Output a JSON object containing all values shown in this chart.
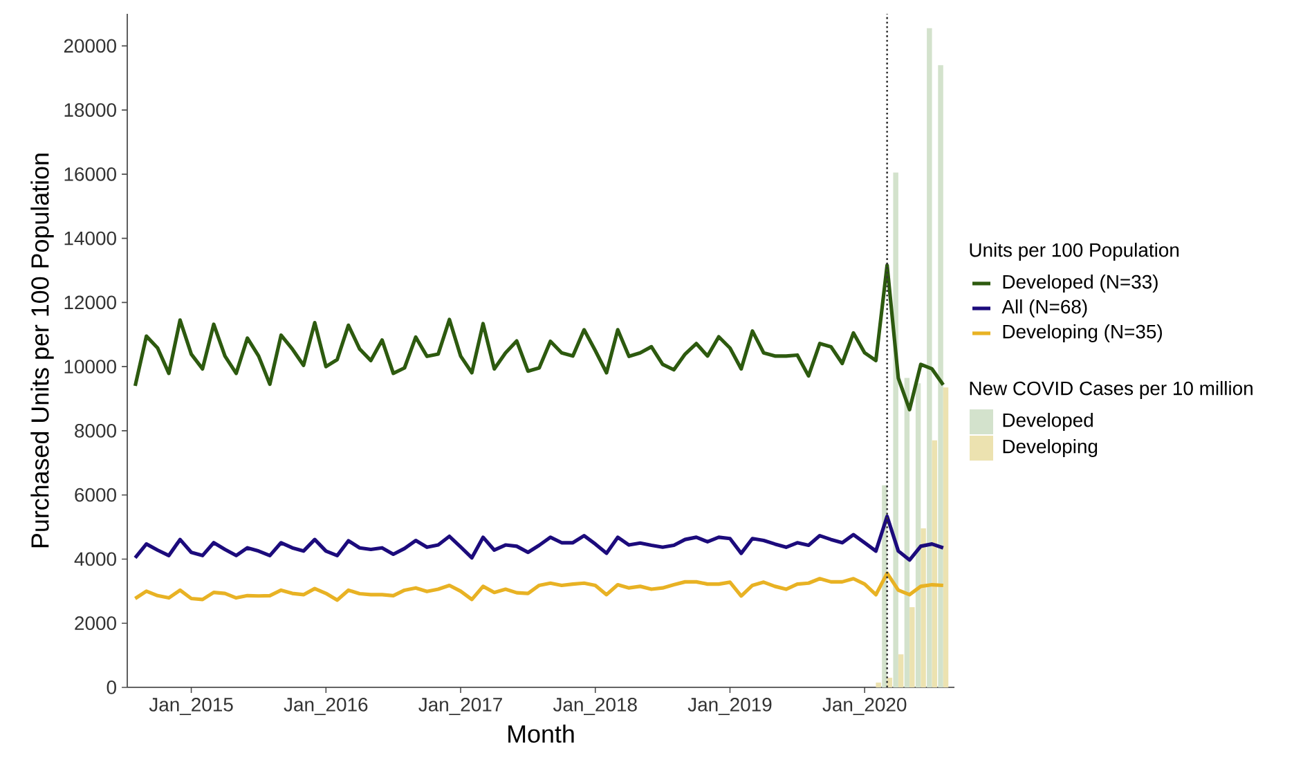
{
  "chart_data": {
    "type": "line",
    "xlabel": "Month",
    "ylabel": "Purchased Units per 100 Population",
    "legend_title": "Units per 100 Population",
    "annotations": [
      "New COVID Cases per 10 million"
    ],
    "legend": "right",
    "x": [
      "2014-08",
      "2014-09",
      "2014-10",
      "2014-11",
      "2014-12",
      "2015-01",
      "2015-02",
      "2015-03",
      "2015-04",
      "2015-05",
      "2015-06",
      "2015-07",
      "2015-08",
      "2015-09",
      "2015-10",
      "2015-11",
      "2015-12",
      "2016-01",
      "2016-02",
      "2016-03",
      "2016-04",
      "2016-05",
      "2016-06",
      "2016-07",
      "2016-08",
      "2016-09",
      "2016-10",
      "2016-11",
      "2016-12",
      "2017-01",
      "2017-02",
      "2017-03",
      "2017-04",
      "2017-05",
      "2017-06",
      "2017-07",
      "2017-08",
      "2017-09",
      "2017-10",
      "2017-11",
      "2017-12",
      "2018-01",
      "2018-02",
      "2018-03",
      "2018-04",
      "2018-05",
      "2018-06",
      "2018-07",
      "2018-08",
      "2018-09",
      "2018-10",
      "2018-11",
      "2018-12",
      "2019-01",
      "2019-02",
      "2019-03",
      "2019-04",
      "2019-05",
      "2019-06",
      "2019-07",
      "2019-08",
      "2019-09",
      "2019-10",
      "2019-11",
      "2019-12",
      "2020-01",
      "2020-02",
      "2020-03",
      "2020-04",
      "2020-05",
      "2020-06",
      "2020-07",
      "2020-08"
    ],
    "series": [
      {
        "name": "Developed",
        "type": "bar",
        "color": "#d3e2cc",
        "x": [
          "2020-03",
          "2020-04",
          "2020-05",
          "2020-06",
          "2020-07",
          "2020-08"
        ],
        "values": [
          6300,
          16050,
          9650,
          9480,
          20550,
          19400
        ]
      },
      {
        "name": "Developing",
        "type": "bar",
        "color": "#ece2b0",
        "x": [
          "2020-02",
          "2020-03",
          "2020-04",
          "2020-05",
          "2020-06",
          "2020-07",
          "2020-08"
        ],
        "values": [
          150,
          300,
          1030,
          2500,
          4960,
          7700,
          9350
        ]
      },
      {
        "name": "Developed (N=33)",
        "color": "#2d5a0f",
        "values": [
          9400,
          10950,
          10580,
          9790,
          11450,
          10390,
          9930,
          11320,
          10330,
          9790,
          10890,
          10330,
          9450,
          10980,
          10550,
          10040,
          11370,
          10000,
          10220,
          11290,
          10550,
          10190,
          10830,
          9790,
          9960,
          10920,
          10320,
          10390,
          11470,
          10330,
          9810,
          11340,
          9930,
          10430,
          10800,
          9860,
          9960,
          10790,
          10430,
          10330,
          11150,
          10500,
          9810,
          11150,
          10320,
          10430,
          10620,
          10070,
          9900,
          10390,
          10720,
          10330,
          10930,
          10580,
          9930,
          11110,
          10430,
          10330,
          10330,
          10360,
          9710,
          10720,
          10620,
          10100,
          11050,
          10430,
          10190,
          13160,
          9640,
          8660,
          10070,
          9930,
          9430
        ]
      },
      {
        "name": "All (N=68)",
        "color": "#1c0b7c",
        "values": [
          4040,
          4470,
          4280,
          4110,
          4610,
          4210,
          4110,
          4510,
          4300,
          4110,
          4350,
          4250,
          4110,
          4510,
          4350,
          4250,
          4610,
          4250,
          4110,
          4570,
          4350,
          4300,
          4350,
          4150,
          4330,
          4580,
          4370,
          4440,
          4710,
          4380,
          4040,
          4680,
          4280,
          4440,
          4400,
          4210,
          4430,
          4680,
          4510,
          4510,
          4730,
          4470,
          4180,
          4680,
          4440,
          4500,
          4430,
          4370,
          4430,
          4610,
          4680,
          4540,
          4680,
          4640,
          4180,
          4640,
          4580,
          4470,
          4370,
          4510,
          4430,
          4730,
          4610,
          4510,
          4760,
          4510,
          4250,
          5330,
          4250,
          3970,
          4400,
          4470,
          4350
        ]
      },
      {
        "name": "Developing (N=35)",
        "color": "#e8b224",
        "values": [
          2770,
          3000,
          2860,
          2790,
          3030,
          2770,
          2740,
          2960,
          2930,
          2790,
          2860,
          2850,
          2860,
          3030,
          2930,
          2890,
          3080,
          2930,
          2720,
          3030,
          2920,
          2890,
          2890,
          2860,
          3030,
          3100,
          2990,
          3060,
          3180,
          3000,
          2740,
          3150,
          2960,
          3060,
          2950,
          2930,
          3180,
          3250,
          3180,
          3220,
          3250,
          3180,
          2890,
          3200,
          3100,
          3150,
          3060,
          3100,
          3200,
          3290,
          3290,
          3220,
          3220,
          3280,
          2850,
          3180,
          3280,
          3150,
          3060,
          3220,
          3250,
          3390,
          3290,
          3290,
          3390,
          3220,
          2890,
          3560,
          3030,
          2890,
          3150,
          3200,
          3180
        ]
      }
    ],
    "xlim": [
      "2014-07-10",
      "2020-09-01"
    ],
    "xticks": [
      {
        "value": "2015-01",
        "label": "Jan_2015"
      },
      {
        "value": "2016-01",
        "label": "Jan_2016"
      },
      {
        "value": "2017-01",
        "label": "Jan_2017"
      },
      {
        "value": "2018-01",
        "label": "Jan_2018"
      },
      {
        "value": "2019-01",
        "label": "Jan_2019"
      },
      {
        "value": "2020-01",
        "label": "Jan_2020"
      }
    ],
    "ylim": [
      0,
      21000
    ],
    "yticks": [
      0,
      2000,
      4000,
      6000,
      8000,
      10000,
      12000,
      14000,
      16000,
      18000,
      20000
    ],
    "ref_lines": [
      {
        "axis": "x",
        "value": "2020-03",
        "color": "#333333",
        "line_style": "dotted"
      }
    ]
  }
}
